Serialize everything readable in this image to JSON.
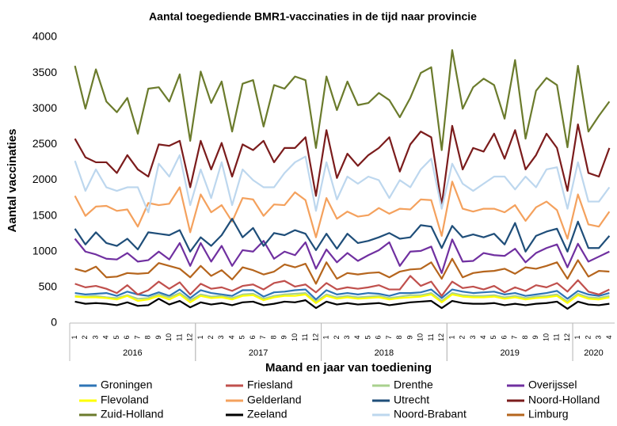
{
  "chart_data": {
    "type": "line",
    "title": "Aantal toegediende BMR1-vaccinaties in de tijd naar provincie",
    "x_label": "Maand en jaar van toediening",
    "y_label": "Aantal vaccinaties",
    "categories": [
      "1",
      "2",
      "3",
      "4",
      "5",
      "6",
      "7",
      "8",
      "9",
      "10",
      "11",
      "12",
      "1",
      "2",
      "3",
      "4",
      "5",
      "6",
      "7",
      "8",
      "9",
      "10",
      "11",
      "12",
      "1",
      "2",
      "3",
      "4",
      "5",
      "6",
      "7",
      "8",
      "9",
      "10",
      "11",
      "12",
      "1",
      "2",
      "3",
      "4",
      "5",
      "6",
      "7",
      "8",
      "9",
      "10",
      "11",
      "12",
      "1",
      "2",
      "3",
      "4"
    ],
    "years": [
      "2016",
      "2017",
      "2018",
      "2019",
      "2020"
    ],
    "ylim": [
      0,
      4000
    ],
    "yticks": [
      0,
      500,
      1000,
      1500,
      2000,
      2500,
      3000,
      3500,
      4000
    ],
    "grid": false,
    "series": [
      {
        "name": "Groningen",
        "color": "#2e75b6",
        "values": [
          420,
          400,
          410,
          420,
          380,
          440,
          400,
          380,
          430,
          380,
          470,
          350,
          460,
          420,
          400,
          380,
          460,
          460,
          370,
          430,
          440,
          460,
          470,
          330,
          460,
          400,
          420,
          400,
          420,
          410,
          380,
          420,
          420,
          430,
          470,
          350,
          470,
          440,
          420,
          430,
          440,
          400,
          420,
          380,
          400,
          420,
          450,
          340,
          450,
          400,
          380,
          420
        ]
      },
      {
        "name": "Friesland",
        "color": "#c0504d",
        "values": [
          550,
          500,
          520,
          480,
          420,
          530,
          400,
          460,
          580,
          480,
          570,
          400,
          550,
          480,
          500,
          450,
          520,
          540,
          470,
          560,
          590,
          510,
          540,
          430,
          560,
          470,
          500,
          480,
          500,
          530,
          470,
          470,
          660,
          520,
          580,
          380,
          580,
          490,
          510,
          470,
          520,
          430,
          500,
          450,
          530,
          500,
          560,
          440,
          600,
          440,
          400,
          470
        ]
      },
      {
        "name": "Drenthe",
        "color": "#a9d18e",
        "values": [
          380,
          370,
          380,
          360,
          350,
          390,
          340,
          350,
          400,
          360,
          420,
          320,
          400,
          370,
          380,
          350,
          400,
          410,
          340,
          380,
          400,
          410,
          420,
          300,
          400,
          360,
          380,
          360,
          370,
          380,
          350,
          370,
          390,
          390,
          420,
          310,
          420,
          390,
          380,
          380,
          390,
          360,
          380,
          350,
          370,
          380,
          400,
          300,
          410,
          360,
          350,
          380
        ]
      },
      {
        "name": "Overijssel",
        "color": "#7030a0",
        "values": [
          1180,
          1000,
          960,
          900,
          890,
          980,
          860,
          880,
          1000,
          890,
          1120,
          800,
          1120,
          860,
          1080,
          800,
          1020,
          1000,
          1150,
          900,
          1000,
          950,
          1130,
          760,
          1030,
          850,
          980,
          870,
          950,
          1020,
          1130,
          800,
          1000,
          1010,
          1070,
          700,
          1170,
          860,
          870,
          980,
          950,
          940,
          1040,
          850,
          980,
          1050,
          1100,
          780,
          1110,
          860,
          930,
          1000
        ]
      },
      {
        "name": "Flevoland",
        "color": "#ffff00",
        "values": [
          370,
          360,
          360,
          350,
          330,
          380,
          310,
          330,
          380,
          330,
          400,
          290,
          380,
          350,
          360,
          330,
          380,
          390,
          320,
          360,
          380,
          380,
          400,
          280,
          380,
          340,
          360,
          340,
          350,
          360,
          330,
          350,
          360,
          370,
          400,
          290,
          400,
          370,
          360,
          360,
          370,
          340,
          360,
          330,
          350,
          360,
          380,
          280,
          390,
          340,
          330,
          360
        ]
      },
      {
        "name": "Gelderland",
        "color": "#f4a15d",
        "values": [
          1780,
          1500,
          1630,
          1640,
          1570,
          1590,
          1350,
          1680,
          1650,
          1670,
          1900,
          1270,
          1800,
          1550,
          1650,
          1420,
          1750,
          1730,
          1500,
          1660,
          1650,
          1830,
          1720,
          1200,
          1750,
          1460,
          1560,
          1490,
          1510,
          1610,
          1530,
          1600,
          1590,
          1730,
          1720,
          1220,
          1980,
          1600,
          1560,
          1600,
          1600,
          1550,
          1650,
          1430,
          1620,
          1700,
          1580,
          1180,
          1800,
          1380,
          1350,
          1560
        ]
      },
      {
        "name": "Utrecht",
        "color": "#1f4e79",
        "values": [
          1320,
          1100,
          1270,
          1120,
          1080,
          1180,
          1030,
          1270,
          1250,
          1230,
          1300,
          1000,
          1200,
          1080,
          1230,
          1460,
          1200,
          1330,
          1080,
          1260,
          1230,
          1300,
          1250,
          1020,
          1250,
          1040,
          1250,
          1120,
          1150,
          1200,
          1260,
          1180,
          1200,
          1370,
          1350,
          1050,
          1360,
          1200,
          1240,
          1200,
          1250,
          1100,
          1400,
          1000,
          1220,
          1280,
          1320,
          1000,
          1420,
          1050,
          1050,
          1220
        ]
      },
      {
        "name": "Noord-Holland",
        "color": "#7b1c1c",
        "values": [
          2580,
          2320,
          2250,
          2250,
          2100,
          2350,
          2150,
          2050,
          2500,
          2480,
          2550,
          1900,
          2550,
          2150,
          2520,
          2050,
          2500,
          2420,
          2550,
          2250,
          2450,
          2450,
          2600,
          1780,
          2700,
          2030,
          2370,
          2200,
          2350,
          2450,
          2600,
          2120,
          2500,
          2680,
          2600,
          1650,
          2760,
          2150,
          2450,
          2400,
          2650,
          2300,
          2700,
          2150,
          2350,
          2650,
          2450,
          1850,
          2780,
          2100,
          2050,
          2450
        ]
      },
      {
        "name": "Zuid-Holland",
        "color": "#6b7b2c",
        "values": [
          3600,
          3000,
          3550,
          3100,
          2950,
          3150,
          2650,
          3280,
          3300,
          3100,
          3480,
          2550,
          3520,
          3080,
          3380,
          2680,
          3350,
          3400,
          2750,
          3330,
          3280,
          3450,
          3400,
          2450,
          3450,
          2980,
          3380,
          3050,
          3080,
          3220,
          3120,
          2880,
          3150,
          3500,
          3580,
          2420,
          3820,
          3000,
          3300,
          3420,
          3330,
          2860,
          3680,
          2580,
          3250,
          3430,
          3330,
          2460,
          3600,
          2680,
          2900,
          3100
        ]
      },
      {
        "name": "Zeeland",
        "color": "#000000",
        "values": [
          300,
          270,
          280,
          270,
          250,
          290,
          240,
          250,
          340,
          260,
          310,
          220,
          290,
          260,
          280,
          250,
          290,
          300,
          250,
          270,
          300,
          290,
          320,
          210,
          300,
          260,
          280,
          260,
          270,
          280,
          250,
          270,
          290,
          300,
          310,
          210,
          310,
          280,
          270,
          270,
          280,
          250,
          270,
          250,
          270,
          280,
          300,
          200,
          300,
          260,
          250,
          270
        ]
      },
      {
        "name": "Noord-Brabant",
        "color": "#bdd7ee",
        "values": [
          2270,
          1850,
          2150,
          1900,
          1850,
          1900,
          1900,
          1550,
          2230,
          2050,
          2350,
          1650,
          2150,
          1750,
          2250,
          1650,
          2150,
          2000,
          1900,
          1900,
          2100,
          2250,
          2330,
          1570,
          2250,
          1730,
          2050,
          1950,
          2050,
          2000,
          1750,
          2000,
          1900,
          2150,
          2300,
          1600,
          2230,
          1950,
          1850,
          1950,
          2050,
          2050,
          1870,
          2050,
          1900,
          2150,
          2180,
          1600,
          2250,
          1700,
          1700,
          1900
        ]
      },
      {
        "name": "Limburg",
        "color": "#b5651d",
        "values": [
          760,
          720,
          790,
          640,
          650,
          700,
          690,
          700,
          840,
          800,
          760,
          640,
          800,
          660,
          740,
          610,
          780,
          740,
          680,
          720,
          820,
          780,
          830,
          550,
          850,
          620,
          700,
          680,
          700,
          710,
          640,
          720,
          750,
          760,
          850,
          620,
          900,
          640,
          700,
          720,
          730,
          760,
          690,
          780,
          760,
          800,
          850,
          620,
          880,
          650,
          730,
          720
        ]
      }
    ]
  }
}
